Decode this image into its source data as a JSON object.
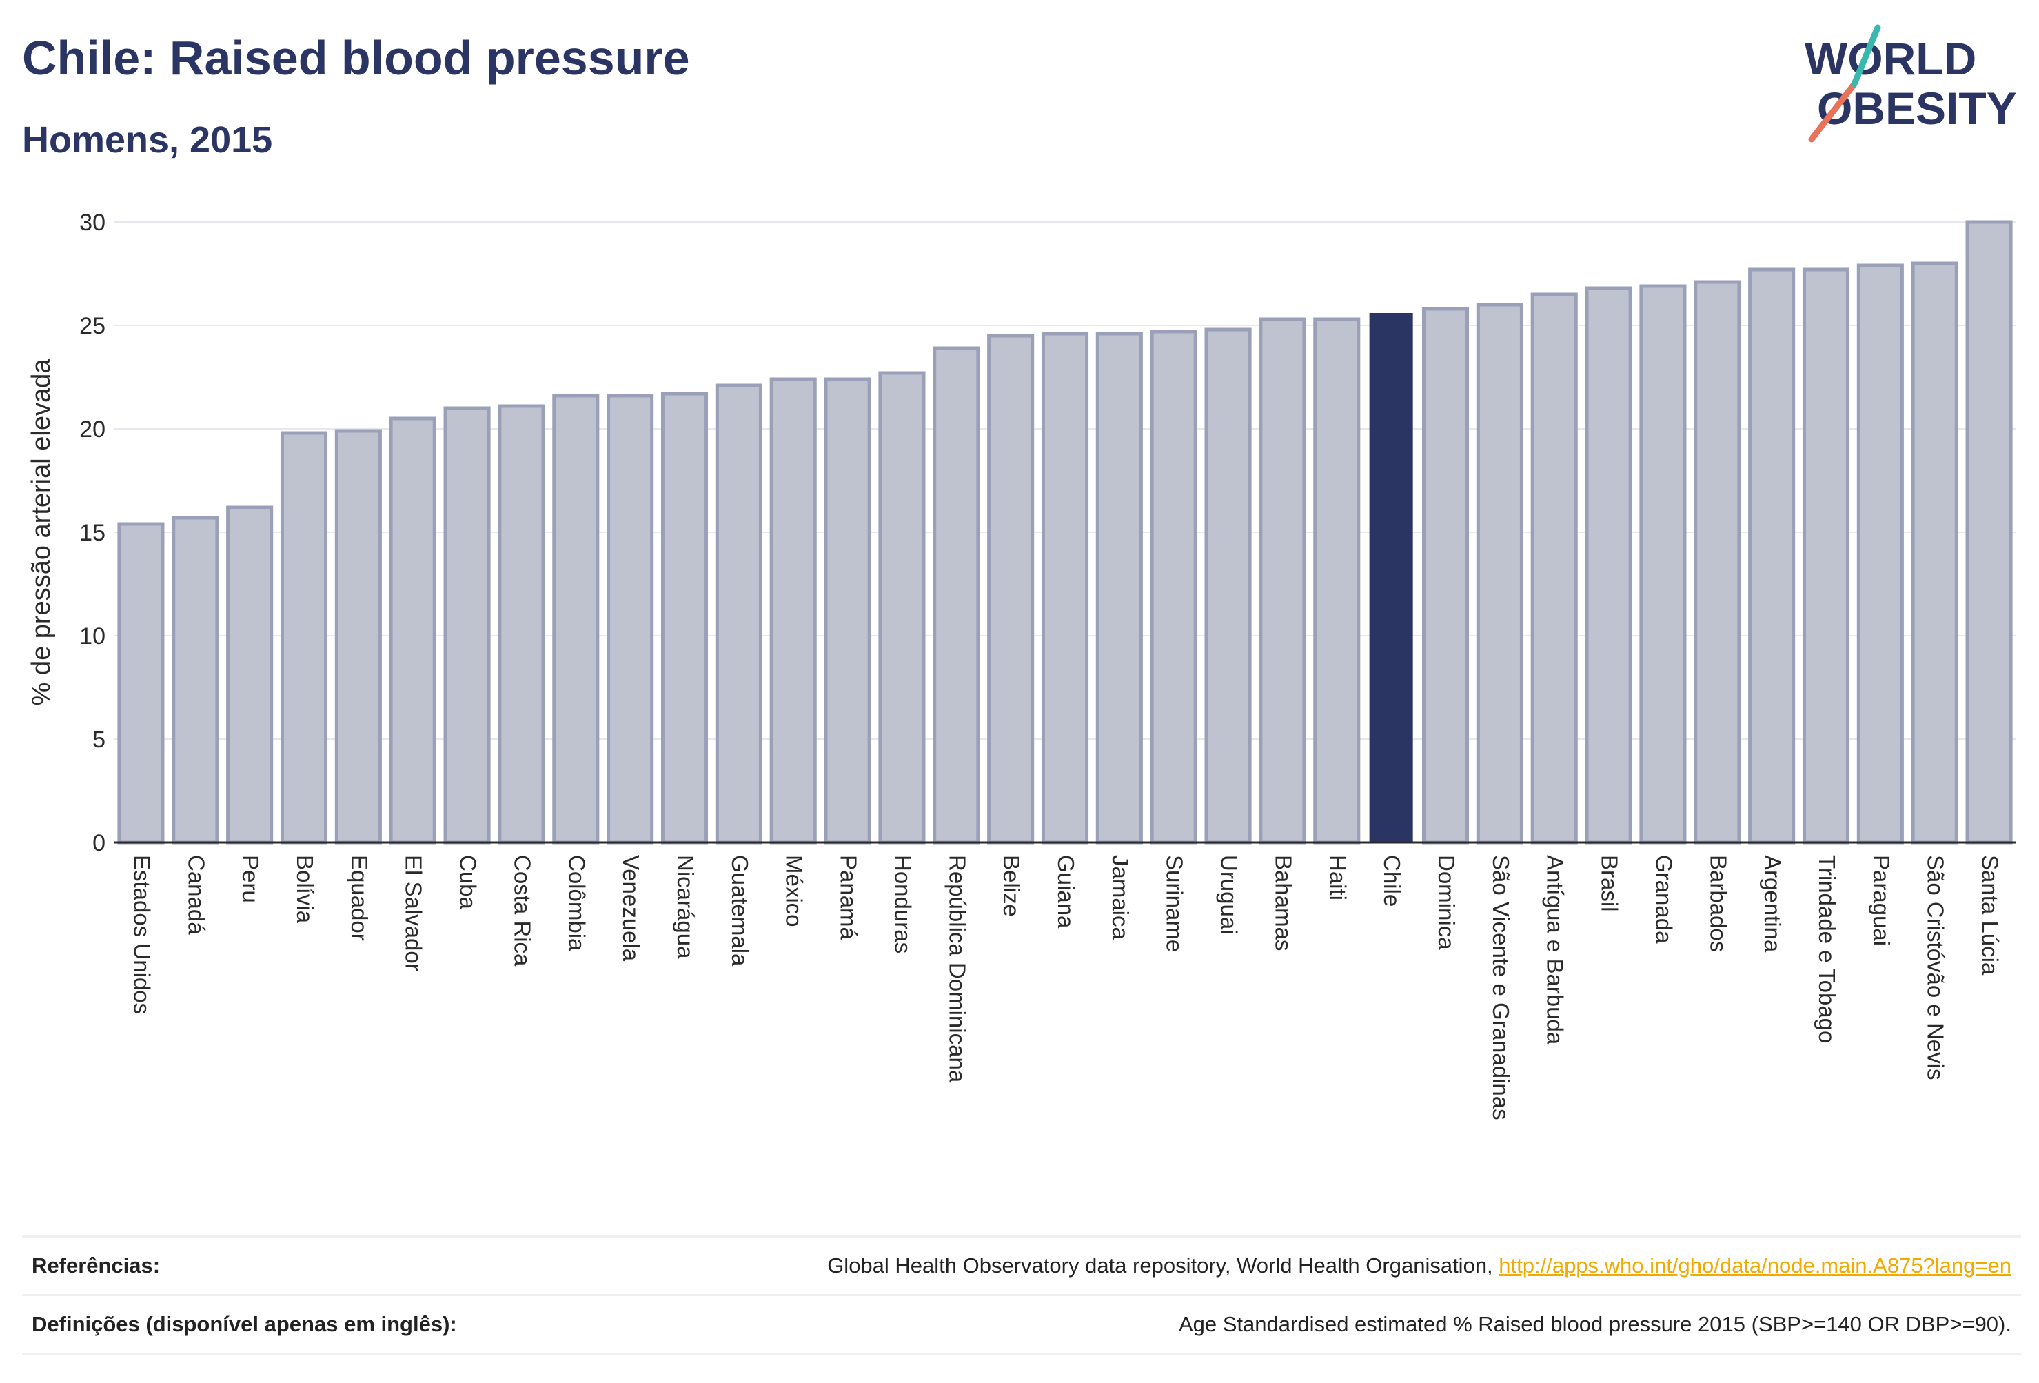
{
  "header": {
    "title": "Chile: Raised blood pressure",
    "subtitle": "Homens, 2015"
  },
  "logo": {
    "line1": "WORLD",
    "line2": "OBESITY"
  },
  "footer": {
    "references_label": "Referências:",
    "references_text": "Global Health Observatory data repository, World Health Organisation, ",
    "references_link": "http://apps.who.int/gho/data/node.main.A875?lang=en",
    "definitions_label": "Definições (disponível apenas em inglês):",
    "definitions_text": "Age Standardised estimated % Raised blood pressure 2015 (SBP>=140 OR DBP>=90)."
  },
  "colors": {
    "bar_fill": "#bfc3d0",
    "bar_stroke": "#9aa0b8",
    "highlight": "#2b3563",
    "grid": "#e6e8ee"
  },
  "chart_data": {
    "type": "bar",
    "ylabel": "% de pressão arterial elevada",
    "ylim": [
      0,
      30
    ],
    "yticks": [
      0,
      5,
      10,
      15,
      20,
      25,
      30
    ],
    "grid": true,
    "highlight_category": "Chile",
    "categories": [
      "Estados Unidos",
      "Canadá",
      "Peru",
      "Bolívia",
      "Equador",
      "El Salvador",
      "Cuba",
      "Costa Rica",
      "Colômbia",
      "Venezuela",
      "Nicarágua",
      "Guatemala",
      "México",
      "Panamá",
      "Honduras",
      "República Dominicana",
      "Belize",
      "Guiana",
      "Jamaica",
      "Suriname",
      "Uruguai",
      "Bahamas",
      "Haiti",
      "Chile",
      "Dominica",
      "São Vicente e Granadinas",
      "Antígua e Barbuda",
      "Brasil",
      "Granada",
      "Barbados",
      "Argentina",
      "Trindade e Tobago",
      "Paraguai",
      "São Cristóvão e Nevis",
      "Santa Lúcia"
    ],
    "values": [
      15.4,
      15.7,
      16.2,
      19.8,
      19.9,
      20.5,
      21.0,
      21.1,
      21.6,
      21.6,
      21.7,
      22.1,
      22.4,
      22.4,
      22.7,
      23.9,
      24.5,
      24.6,
      24.6,
      24.7,
      24.8,
      25.3,
      25.3,
      25.6,
      25.8,
      26.0,
      26.5,
      26.8,
      26.9,
      27.1,
      27.7,
      27.7,
      27.9,
      28.0,
      30.0
    ]
  }
}
